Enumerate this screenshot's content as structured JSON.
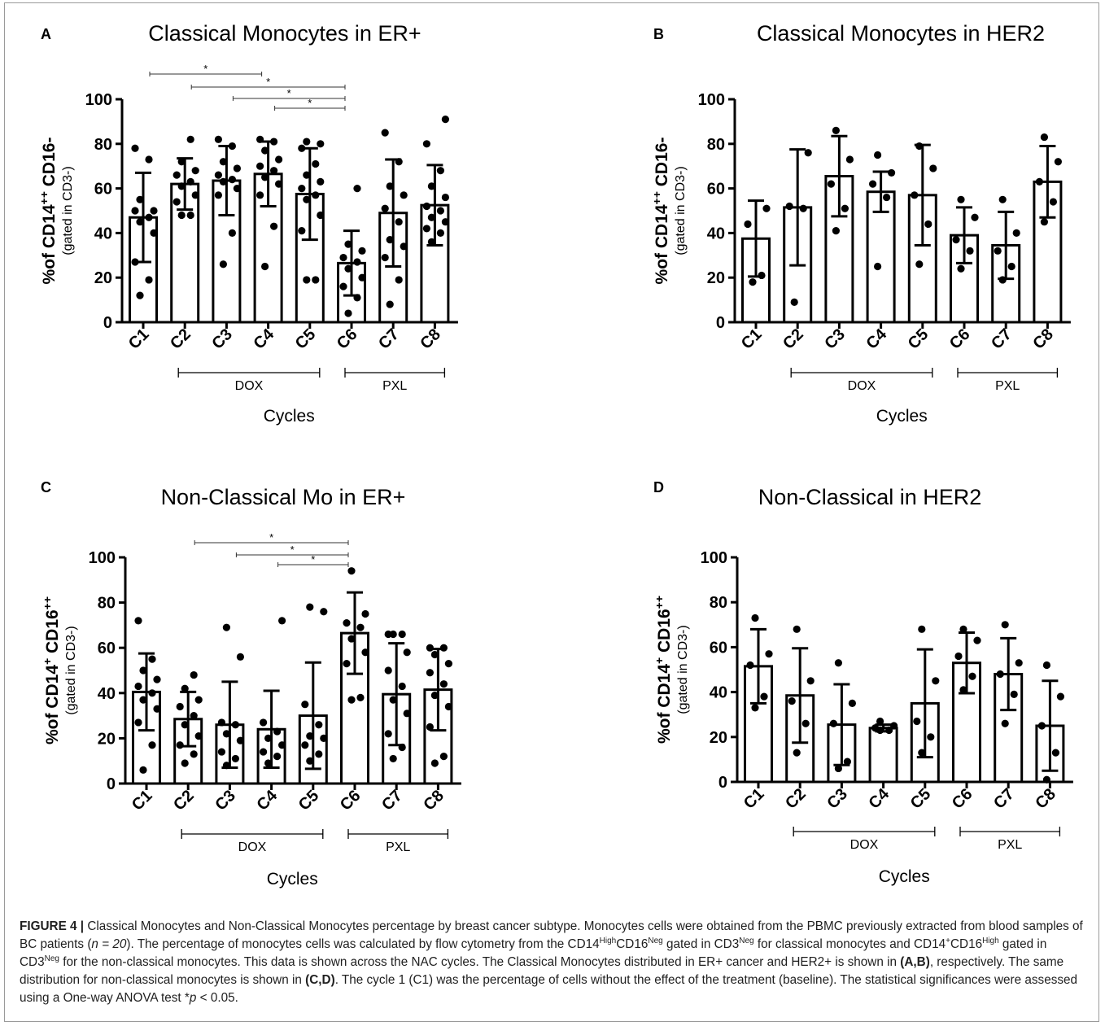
{
  "chart_data": [
    {
      "type": "bar",
      "panel_label": "A",
      "title": "Classical Monocytes in ER+",
      "ylabel": "%of CD14++ CD16-",
      "ylabel_main": "%of CD14",
      "ylabel_sup": "++",
      "ylabel_rest": " CD16-",
      "ylabel2": "(gated in CD3-)",
      "xlabel": "Cycles",
      "ylim": [
        0,
        100
      ],
      "yticks": [
        "0",
        "20",
        "40",
        "60",
        "80",
        "100"
      ],
      "categories": [
        "C1",
        "C2",
        "C3",
        "C4",
        "C5",
        "C6",
        "C7",
        "C8"
      ],
      "values": [
        47,
        62,
        63.5,
        66.5,
        57.5,
        26.5,
        49,
        52.5
      ],
      "errors": [
        20,
        11.5,
        15.5,
        14.5,
        20.5,
        14.5,
        24,
        18
      ],
      "points": [
        [
          12,
          19,
          27,
          40,
          45,
          47,
          50,
          50,
          55,
          73,
          78
        ],
        [
          48,
          48,
          54,
          57,
          61,
          63,
          66,
          68,
          72,
          82
        ],
        [
          26,
          40,
          57,
          60,
          63,
          64,
          66,
          69,
          72,
          79,
          82
        ],
        [
          25,
          43,
          57,
          62,
          65,
          68,
          70,
          73,
          77,
          81,
          82
        ],
        [
          19,
          19,
          41,
          48,
          55,
          57,
          60,
          63,
          66,
          71,
          78,
          80,
          81
        ],
        [
          4,
          11,
          16,
          20,
          24,
          27,
          29,
          32,
          35,
          60
        ],
        [
          8,
          19,
          29,
          34,
          37,
          45,
          51,
          57,
          61,
          72,
          85
        ],
        [
          36,
          40,
          42,
          45,
          47,
          50,
          52,
          56,
          61,
          68,
          80,
          91
        ]
      ],
      "groups": [
        {
          "label": "DOX",
          "from": 1,
          "to": 4
        },
        {
          "label": "PXL",
          "from": 5,
          "to": 7
        }
      ],
      "significance": [
        {
          "from": 0,
          "to": 3,
          "label": "*"
        },
        {
          "from": 1,
          "to": 5,
          "label": "*"
        },
        {
          "from": 2,
          "to": 5,
          "label": "*"
        },
        {
          "from": 3,
          "to": 5,
          "label": "*"
        }
      ]
    },
    {
      "type": "bar",
      "panel_label": "B",
      "title": "Classical Monocytes in HER2",
      "ylabel": "%of CD14++ CD16-",
      "ylabel_main": "%of CD14",
      "ylabel_sup": "++",
      "ylabel_rest": " CD16-",
      "ylabel2": "(gated in CD3-)",
      "xlabel": "Cycles",
      "ylim": [
        0,
        100
      ],
      "yticks": [
        "0",
        "20",
        "40",
        "60",
        "80",
        "100"
      ],
      "categories": [
        "C1",
        "C2",
        "C3",
        "C4",
        "C5",
        "C6",
        "C7",
        "C8"
      ],
      "values": [
        37.5,
        51.5,
        65.5,
        58.5,
        57,
        39,
        34.5,
        63
      ],
      "errors": [
        17,
        26,
        18,
        9,
        22.5,
        12.5,
        15,
        16
      ],
      "points": [
        [
          18,
          21,
          44,
          51
        ],
        [
          9,
          51,
          52,
          76
        ],
        [
          41,
          51,
          62,
          73,
          86
        ],
        [
          25,
          56,
          62,
          67,
          75
        ],
        [
          26,
          44,
          57,
          69,
          79
        ],
        [
          24,
          32,
          37,
          47,
          55
        ],
        [
          19,
          25,
          32,
          40,
          55
        ],
        [
          45,
          54,
          63,
          72,
          83
        ]
      ],
      "groups": [
        {
          "label": "DOX",
          "from": 1,
          "to": 4
        },
        {
          "label": "PXL",
          "from": 5,
          "to": 7
        }
      ],
      "significance": []
    },
    {
      "type": "bar",
      "panel_label": "C",
      "title": "Non-Classical Mo in ER+",
      "ylabel": "%of CD14+ CD16++",
      "ylabel_main": "%of CD14",
      "ylabel_sup": "+",
      "ylabel_rest": " CD16",
      "ylabel_sup2": "++",
      "ylabel2": "(gated in CD3-)",
      "xlabel": "Cycles",
      "ylim": [
        0,
        100
      ],
      "yticks": [
        "0",
        "20",
        "40",
        "60",
        "80",
        "100"
      ],
      "categories": [
        "C1",
        "C2",
        "C3",
        "C4",
        "C5",
        "C6",
        "C7",
        "C8"
      ],
      "values": [
        40.5,
        28.5,
        26,
        24,
        30,
        66.5,
        39.5,
        41.5
      ],
      "errors": [
        17,
        12,
        19,
        17,
        23.5,
        18,
        22.5,
        18
      ],
      "points": [
        [
          6,
          17,
          27,
          33,
          37,
          40,
          43,
          46,
          50,
          55,
          72
        ],
        [
          9,
          13,
          17,
          21,
          26,
          30,
          34,
          37,
          42,
          48
        ],
        [
          8,
          11,
          14,
          19,
          22,
          26,
          27,
          56,
          69
        ],
        [
          9,
          12,
          14,
          17,
          20,
          23,
          27,
          72
        ],
        [
          10,
          13,
          17,
          20,
          21,
          26,
          35,
          76,
          78
        ],
        [
          37,
          38,
          53,
          58,
          64,
          69,
          71,
          75,
          94
        ],
        [
          11,
          16,
          22,
          31,
          37,
          43,
          50,
          58,
          66,
          66,
          66
        ],
        [
          9,
          12,
          25,
          34,
          39,
          44,
          49,
          53,
          57,
          60,
          60
        ]
      ],
      "groups": [
        {
          "label": "DOX",
          "from": 1,
          "to": 4
        },
        {
          "label": "PXL",
          "from": 5,
          "to": 7
        }
      ],
      "significance": [
        {
          "from": 1,
          "to": 5,
          "label": "*"
        },
        {
          "from": 2,
          "to": 5,
          "label": "*"
        },
        {
          "from": 3,
          "to": 5,
          "label": "*"
        }
      ]
    },
    {
      "type": "bar",
      "panel_label": "D",
      "title": "Non-Classical in HER2",
      "ylabel": "%of CD14+ CD16++",
      "ylabel_main": "%of CD14",
      "ylabel_sup": "+",
      "ylabel_rest": " CD16",
      "ylabel_sup2": "++",
      "ylabel2": "(gated in CD3-)",
      "xlabel": "Cycles",
      "ylim": [
        0,
        100
      ],
      "yticks": [
        "0",
        "20",
        "40",
        "60",
        "80",
        "100"
      ],
      "categories": [
        "C1",
        "C2",
        "C3",
        "C4",
        "C5",
        "C6",
        "C7",
        "C8"
      ],
      "values": [
        51.5,
        38.5,
        25.5,
        24,
        35,
        53,
        48,
        25
      ],
      "errors": [
        16.5,
        21,
        18,
        1.5,
        24,
        13.5,
        16,
        20
      ],
      "points": [
        [
          33,
          38,
          52,
          57,
          73
        ],
        [
          13,
          26,
          36,
          45,
          68
        ],
        [
          6,
          9,
          26,
          35,
          53
        ],
        [
          23,
          23,
          24,
          25,
          27
        ],
        [
          13,
          20,
          27,
          45,
          68
        ],
        [
          41,
          47,
          56,
          63,
          68
        ],
        [
          26,
          39,
          48,
          53,
          70
        ],
        [
          1,
          13,
          25,
          38,
          52
        ]
      ],
      "groups": [
        {
          "label": "DOX",
          "from": 1,
          "to": 4
        },
        {
          "label": "PXL",
          "from": 5,
          "to": 7
        }
      ],
      "significance": []
    }
  ],
  "caption": {
    "label": "FIGURE 4 |",
    "p1": " Classical Monocytes and Non-Classical Monocytes percentage by breast cancer subtype. Monocytes cells were obtained from the PBMC previously extracted from blood samples of BC patients (",
    "n_expr": "n = 20",
    "p2": "). The percentage of monocytes cells was calculated by flow cytometry from the CD14",
    "sup_high": "High",
    "p3": "CD16",
    "sup_neg": "Neg",
    "p4": " gated in CD3",
    "p5": " for classical monocytes and CD14",
    "sup_plus": "+",
    "p6": "CD16",
    "p7": " gated in CD3",
    "p8": " for the non-classical monocytes. This data is shown across the NAC cycles. The Classical Monocytes distributed in ER+ cancer and HER2+ is shown in ",
    "ref_ab": "(A,B)",
    "p9": ", respectively. The same distribution for non-classical monocytes is shown in ",
    "ref_cd": "(C,D)",
    "p10": ". The cycle 1 (C1) was the percentage of cells without the effect of the treatment (baseline). The statistical significances were assessed using a One-way ANOVA test *",
    "p_expr": "p",
    "p11": " < 0.05."
  }
}
